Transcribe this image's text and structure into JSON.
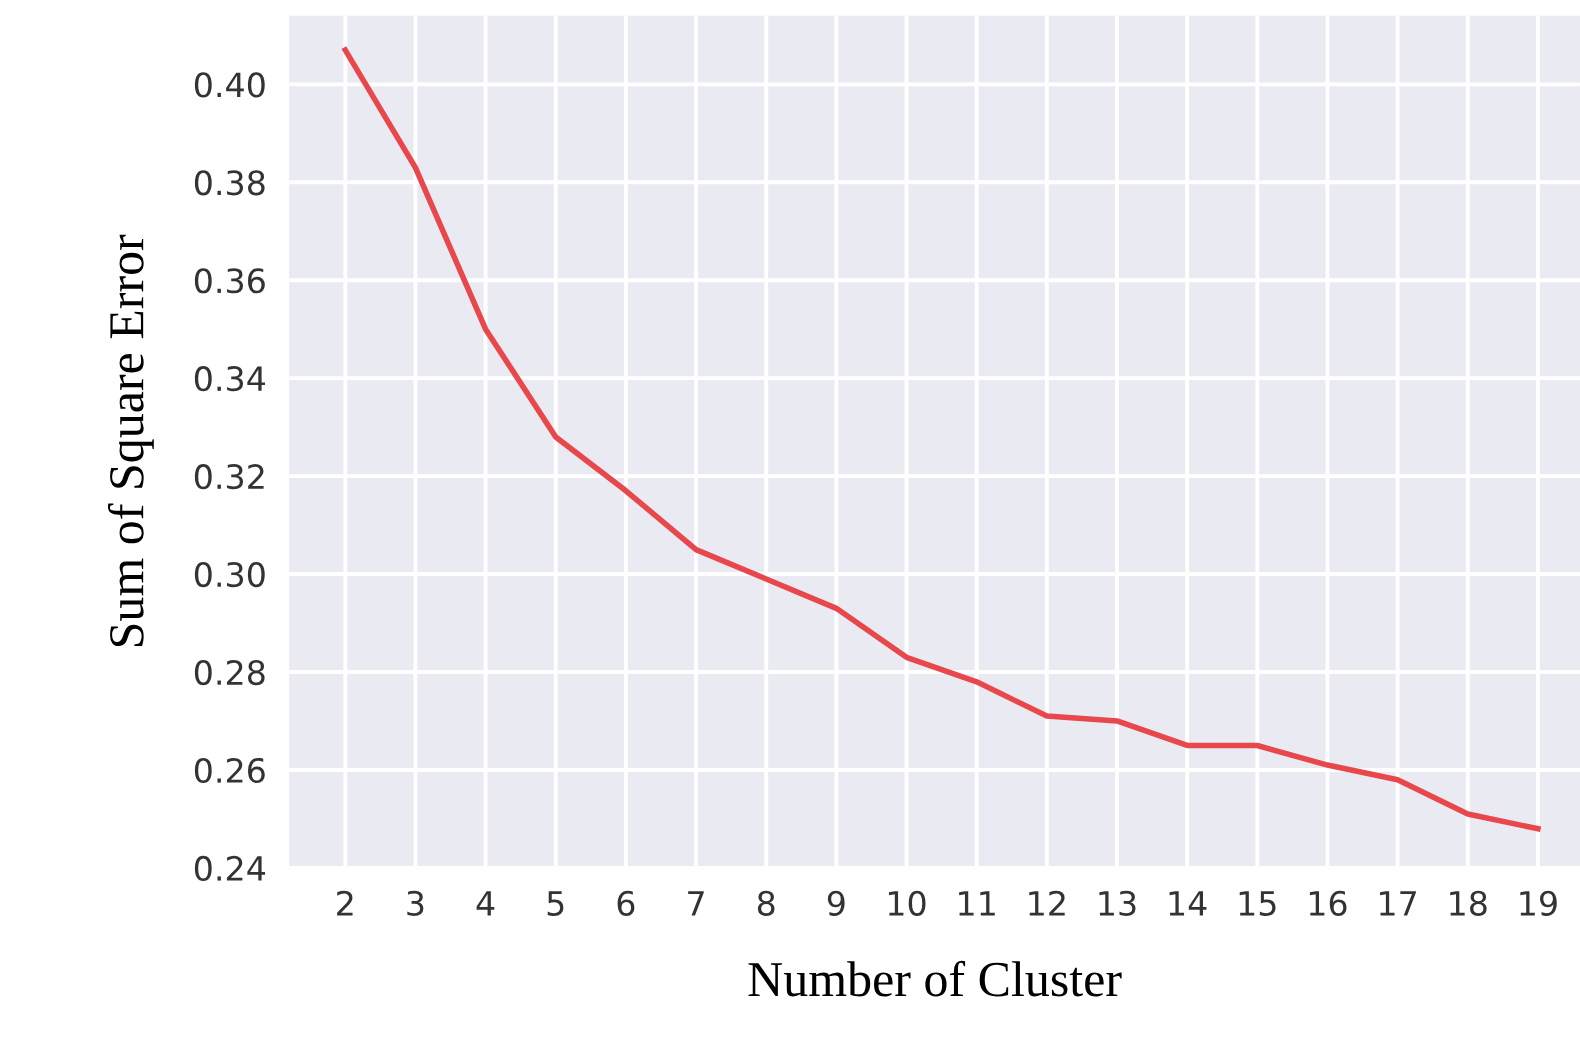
{
  "chart_data": {
    "type": "line",
    "xlabel": "Number of Cluster",
    "ylabel": "Sum of Square Error",
    "x": [
      2,
      3,
      4,
      5,
      6,
      7,
      8,
      9,
      10,
      11,
      12,
      13,
      14,
      15,
      16,
      17,
      18,
      19
    ],
    "series": [
      {
        "color": "#e8474b",
        "values": [
          0.407,
          0.383,
          0.35,
          0.328,
          0.317,
          0.305,
          0.299,
          0.293,
          0.283,
          0.278,
          0.271,
          0.27,
          0.265,
          0.265,
          0.261,
          0.258,
          0.251,
          0.248
        ]
      }
    ],
    "xlim": [
      1.2,
      19.6
    ],
    "xticks": [
      2,
      3,
      4,
      5,
      6,
      7,
      8,
      9,
      10,
      11,
      12,
      13,
      14,
      15,
      16,
      17,
      18,
      19
    ],
    "ylim": [
      0.24,
      0.414
    ],
    "yticks": [
      {
        "value": 0.24,
        "label": "0.24"
      },
      {
        "value": 0.26,
        "label": "0.26"
      },
      {
        "value": 0.28,
        "label": "0.28"
      },
      {
        "value": 0.3,
        "label": "0.30"
      },
      {
        "value": 0.32,
        "label": "0.32"
      },
      {
        "value": 0.34,
        "label": "0.34"
      },
      {
        "value": 0.36,
        "label": "0.36"
      },
      {
        "value": 0.38,
        "label": "0.38"
      },
      {
        "value": 0.4,
        "label": "0.40"
      }
    ],
    "grid": true,
    "marker": "none",
    "line_style": "solid"
  }
}
